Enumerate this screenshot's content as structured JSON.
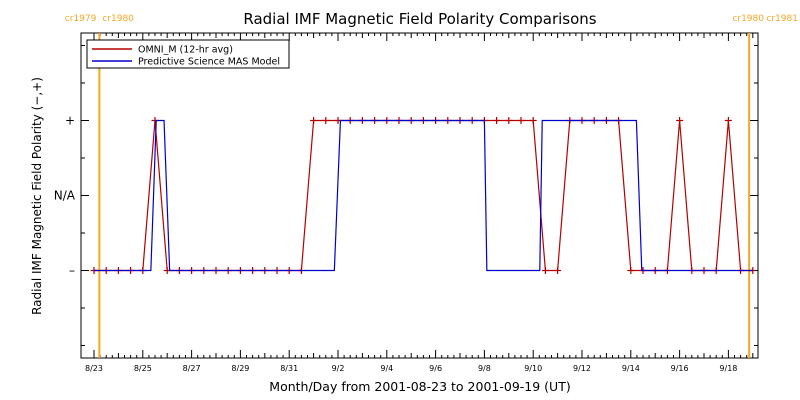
{
  "chart_data": {
    "type": "line",
    "title": "Radial IMF Magnetic Field Polarity Comparisons",
    "xlabel": "Month/Day from 2001-08-23 to 2001-09-19 (UT)",
    "ylabel": "Radial IMF Magnetic Field Polarity (−,+)",
    "x_unit": "days after 2001-08-23 00:00 UT",
    "xlim": [
      0,
      27
    ],
    "ylim": [
      -2,
      2
    ],
    "x_ticks": [
      {
        "x": 0,
        "label": "8/23"
      },
      {
        "x": 2,
        "label": "8/25"
      },
      {
        "x": 4,
        "label": "8/27"
      },
      {
        "x": 6,
        "label": "8/29"
      },
      {
        "x": 8,
        "label": "8/31"
      },
      {
        "x": 10,
        "label": "9/2"
      },
      {
        "x": 12,
        "label": "9/4"
      },
      {
        "x": 14,
        "label": "9/6"
      },
      {
        "x": 16,
        "label": "9/8"
      },
      {
        "x": 18,
        "label": "9/10"
      },
      {
        "x": 20,
        "label": "9/12"
      },
      {
        "x": 22,
        "label": "9/14"
      },
      {
        "x": 24,
        "label": "9/16"
      },
      {
        "x": 26,
        "label": "9/18"
      }
    ],
    "y_ticks": [
      {
        "y": 1,
        "label": "+"
      },
      {
        "y": 0,
        "label": "N/A"
      },
      {
        "y": -1,
        "label": "–"
      }
    ],
    "carrington_markers": [
      {
        "x": 0.22,
        "left_label": "cr1979",
        "right_label": "cr1980"
      },
      {
        "x": 26.85,
        "left_label": "cr1980",
        "right_label": "cr1981"
      }
    ],
    "marker_color": "#f5a623",
    "legend": {
      "placement": "top-left"
    },
    "series": [
      {
        "name": "OMNI_M (12-hr avg)",
        "color": "#b30000",
        "marker": "plus",
        "points": [
          [
            0,
            -1
          ],
          [
            0.5,
            -1
          ],
          [
            1,
            -1
          ],
          [
            1.5,
            -1
          ],
          [
            2,
            -1
          ],
          [
            2.5,
            1
          ],
          [
            3,
            -1
          ],
          [
            3.5,
            -1
          ],
          [
            4,
            -1
          ],
          [
            4.5,
            -1
          ],
          [
            5,
            -1
          ],
          [
            5.5,
            -1
          ],
          [
            6,
            -1
          ],
          [
            6.5,
            -1
          ],
          [
            7,
            -1
          ],
          [
            7.5,
            -1
          ],
          [
            8,
            -1
          ],
          [
            8.5,
            -1
          ],
          [
            9,
            1
          ],
          [
            9.5,
            1
          ],
          [
            10,
            1
          ],
          [
            10.5,
            1
          ],
          [
            11,
            1
          ],
          [
            11.5,
            1
          ],
          [
            12,
            1
          ],
          [
            12.5,
            1
          ],
          [
            13,
            1
          ],
          [
            13.5,
            1
          ],
          [
            14,
            1
          ],
          [
            14.5,
            1
          ],
          [
            15,
            1
          ],
          [
            15.5,
            1
          ],
          [
            16,
            1
          ],
          [
            16.5,
            1
          ],
          [
            17,
            1
          ],
          [
            17.5,
            1
          ],
          [
            18,
            1
          ],
          [
            18.5,
            -1
          ],
          [
            19,
            -1
          ],
          [
            19.5,
            1
          ],
          [
            20,
            1
          ],
          [
            20.5,
            1
          ],
          [
            21,
            1
          ],
          [
            21.5,
            1
          ],
          [
            22,
            -1
          ],
          [
            22.5,
            -1
          ],
          [
            23,
            -1
          ],
          [
            23.5,
            -1
          ],
          [
            24,
            1
          ],
          [
            24.5,
            -1
          ],
          [
            25,
            -1
          ],
          [
            25.5,
            -1
          ],
          [
            26,
            1
          ],
          [
            26.5,
            -1
          ],
          [
            27,
            -1
          ]
        ]
      },
      {
        "name": "Predictive Science MAS Model",
        "color": "#0000cc",
        "marker": "none",
        "points": [
          [
            0,
            -1
          ],
          [
            2.33,
            -1
          ],
          [
            2.55,
            1
          ],
          [
            2.87,
            1
          ],
          [
            3.1,
            -1
          ],
          [
            9.85,
            -1
          ],
          [
            10.1,
            1
          ],
          [
            16.0,
            1
          ],
          [
            16.1,
            -1
          ],
          [
            18.27,
            -1
          ],
          [
            18.37,
            1
          ],
          [
            22.23,
            1
          ],
          [
            22.45,
            -1
          ],
          [
            27,
            -1
          ]
        ]
      }
    ]
  }
}
